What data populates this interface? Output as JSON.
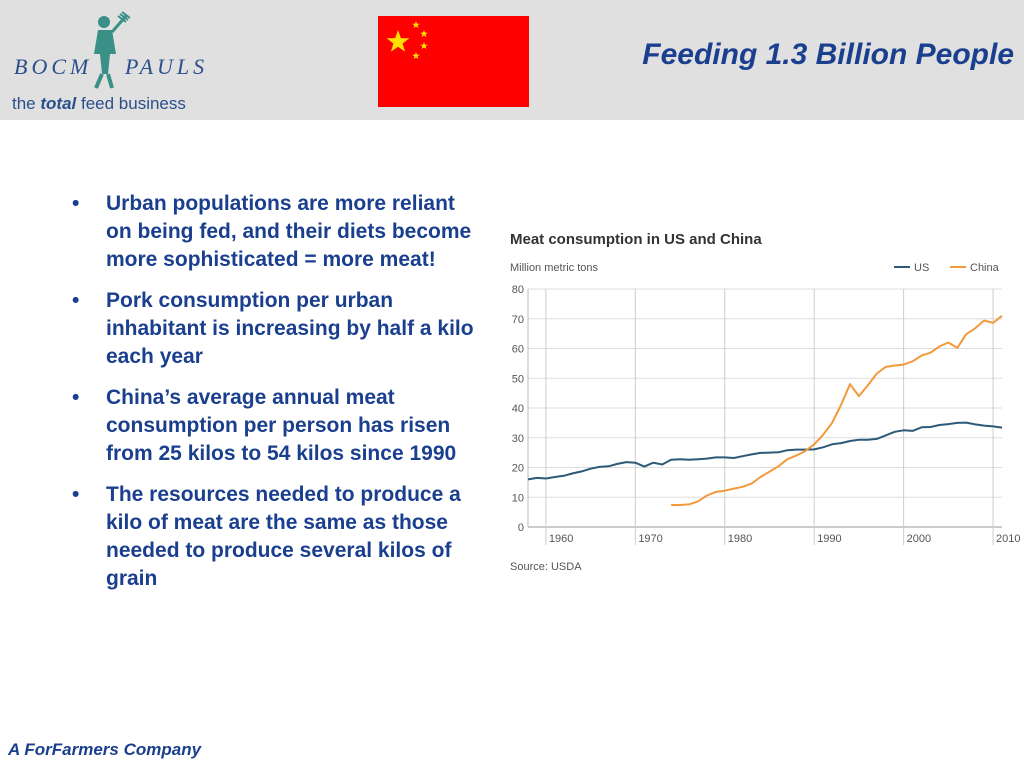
{
  "logo": {
    "word1": "BOCM",
    "word2": "PAULS",
    "tagline_pre": "the ",
    "tagline_bold": "total",
    "tagline_post": " feed business"
  },
  "flag": {
    "name": "China flag",
    "colors": {
      "field": "#ff0000",
      "stars": "#ffde00"
    }
  },
  "title": "Feeding 1.3  Billion People",
  "bullets": [
    "Urban populations are more reliant on being fed, and their diets become more sophisticated = more meat!",
    "Pork consumption per urban inhabitant is increasing by half a kilo each year",
    "China’s average annual meat consumption per person has risen from 25 kilos to 54 kilos since 1990",
    "The resources needed to produce a kilo of meat are the same as those needed to produce several kilos of grain"
  ],
  "bullet_symbol": "•",
  "footer": "A ForFarmers Company",
  "chart_data": {
    "type": "line",
    "title": "Meat consumption in US and China",
    "ylabel": "Million metric tons",
    "source": "Source: USDA",
    "xlim": [
      1958,
      2011
    ],
    "ylim": [
      0,
      80
    ],
    "xticks": [
      1960,
      1970,
      1980,
      1990,
      2000,
      2010
    ],
    "yticks": [
      0,
      10,
      20,
      30,
      40,
      50,
      60,
      70,
      80
    ],
    "grid": true,
    "legend_position": "top-right",
    "series": [
      {
        "name": "US",
        "color": "#2c5a78",
        "points": [
          [
            1958,
            16
          ],
          [
            1959,
            16.5
          ],
          [
            1960,
            16.3
          ],
          [
            1961,
            16.8
          ],
          [
            1962,
            17.2
          ],
          [
            1963,
            18
          ],
          [
            1964,
            18.7
          ],
          [
            1965,
            19.6
          ],
          [
            1966,
            20.2
          ],
          [
            1967,
            20.4
          ],
          [
            1968,
            21.2
          ],
          [
            1969,
            21.8
          ],
          [
            1970,
            21.6
          ],
          [
            1971,
            20.3
          ],
          [
            1972,
            21.6
          ],
          [
            1973,
            21
          ],
          [
            1974,
            22.6
          ],
          [
            1975,
            22.8
          ],
          [
            1976,
            22.6
          ],
          [
            1977,
            22.8
          ],
          [
            1978,
            23
          ],
          [
            1979,
            23.4
          ],
          [
            1980,
            23.4
          ],
          [
            1981,
            23.2
          ],
          [
            1982,
            23.8
          ],
          [
            1983,
            24.4
          ],
          [
            1984,
            24.9
          ],
          [
            1985,
            25
          ],
          [
            1986,
            25.1
          ],
          [
            1987,
            25.8
          ],
          [
            1988,
            26
          ],
          [
            1989,
            26
          ],
          [
            1990,
            26.1
          ],
          [
            1991,
            26.8
          ],
          [
            1992,
            27.8
          ],
          [
            1993,
            28.2
          ],
          [
            1994,
            28.9
          ],
          [
            1995,
            29.3
          ],
          [
            1996,
            29.3
          ],
          [
            1997,
            29.6
          ],
          [
            1998,
            30.8
          ],
          [
            1999,
            32
          ],
          [
            2000,
            32.5
          ],
          [
            2001,
            32.3
          ],
          [
            2002,
            33.5
          ],
          [
            2003,
            33.6
          ],
          [
            2004,
            34.3
          ],
          [
            2005,
            34.6
          ],
          [
            2006,
            35
          ],
          [
            2007,
            35.1
          ],
          [
            2008,
            34.5
          ],
          [
            2009,
            34.1
          ],
          [
            2010,
            33.8
          ],
          [
            2011,
            33.4
          ]
        ]
      },
      {
        "name": "China",
        "color": "#f29a3b",
        "points": [
          [
            1974,
            7.4
          ],
          [
            1975,
            7.4
          ],
          [
            1976,
            7.6
          ],
          [
            1977,
            8.6
          ],
          [
            1978,
            10.6
          ],
          [
            1979,
            11.8
          ],
          [
            1980,
            12.2
          ],
          [
            1981,
            12.9
          ],
          [
            1982,
            13.5
          ],
          [
            1983,
            14.6
          ],
          [
            1984,
            16.8
          ],
          [
            1985,
            18.6
          ],
          [
            1986,
            20.4
          ],
          [
            1987,
            22.8
          ],
          [
            1988,
            24
          ],
          [
            1989,
            25.5
          ],
          [
            1990,
            27.8
          ],
          [
            1991,
            31
          ],
          [
            1992,
            35
          ],
          [
            1993,
            41
          ],
          [
            1994,
            48
          ],
          [
            1995,
            44
          ],
          [
            1996,
            47.6
          ],
          [
            1997,
            51.6
          ],
          [
            1998,
            53.8
          ],
          [
            1999,
            54.3
          ],
          [
            2000,
            54.6
          ],
          [
            2001,
            55.7
          ],
          [
            2002,
            57.6
          ],
          [
            2003,
            58.6
          ],
          [
            2004,
            60.7
          ],
          [
            2005,
            62
          ],
          [
            2006,
            60.2
          ],
          [
            2007,
            64.8
          ],
          [
            2008,
            66.8
          ],
          [
            2009,
            69.4
          ],
          [
            2010,
            68.6
          ],
          [
            2011,
            71
          ]
        ]
      }
    ]
  }
}
